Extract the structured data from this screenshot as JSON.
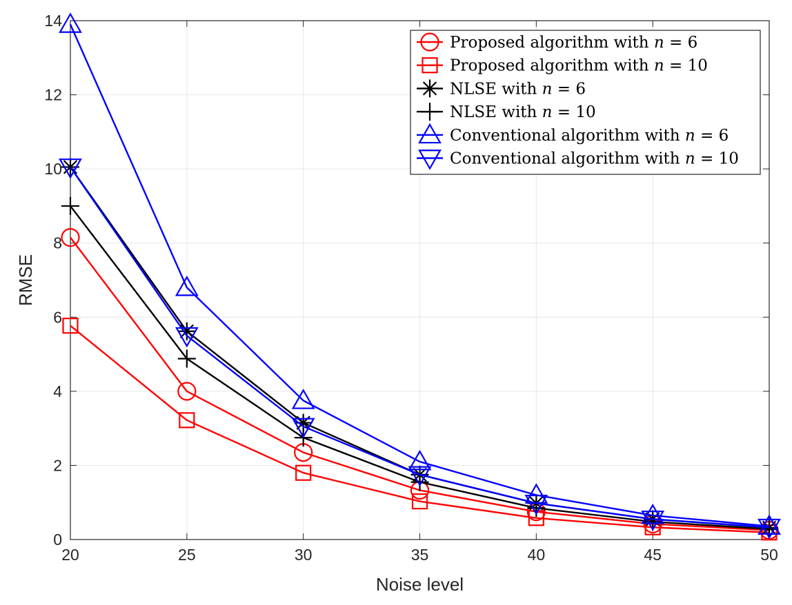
{
  "chart_data": {
    "type": "line",
    "title": "",
    "xlabel": "Noise level",
    "ylabel": "RMSE",
    "x": [
      20,
      25,
      30,
      35,
      40,
      45,
      50
    ],
    "xlim": [
      20,
      50
    ],
    "ylim": [
      0,
      14
    ],
    "xticks": [
      20,
      25,
      30,
      35,
      40,
      45,
      50
    ],
    "yticks": [
      0,
      2,
      4,
      6,
      8,
      10,
      12,
      14
    ],
    "grid": true,
    "legend_position": "top-right",
    "series": [
      {
        "name": "Proposed algorithm with n = 6",
        "legend_prefix": "Proposed algorithm with ",
        "legend_var": "n",
        "legend_eq": " = 6",
        "color": "#ff0000",
        "marker": "circle",
        "values": [
          8.15,
          4.0,
          2.35,
          1.33,
          0.75,
          0.42,
          0.25
        ]
      },
      {
        "name": "Proposed algorithm with n = 10",
        "legend_prefix": "Proposed algorithm with ",
        "legend_var": "n",
        "legend_eq": " = 10",
        "color": "#ff0000",
        "marker": "square",
        "values": [
          5.77,
          3.22,
          1.8,
          1.03,
          0.58,
          0.33,
          0.19
        ]
      },
      {
        "name": "NLSE with n = 6",
        "legend_prefix": "NLSE with ",
        "legend_var": "n",
        "legend_eq": " = 6",
        "color": "#000000",
        "marker": "asterisk",
        "values": [
          10.05,
          5.62,
          3.15,
          1.75,
          0.98,
          0.55,
          0.32
        ]
      },
      {
        "name": "NLSE with n = 10",
        "legend_prefix": "NLSE with ",
        "legend_var": "n",
        "legend_eq": " = 10",
        "color": "#000000",
        "marker": "plus",
        "values": [
          9.0,
          4.88,
          2.75,
          1.55,
          0.85,
          0.48,
          0.28
        ]
      },
      {
        "name": "Conventional algorithm with n = 6",
        "legend_prefix": "Conventional algorithm with ",
        "legend_var": "n",
        "legend_eq": " = 6",
        "color": "#0000ff",
        "marker": "triangle-up",
        "values": [
          13.9,
          6.8,
          3.75,
          2.1,
          1.2,
          0.65,
          0.36
        ]
      },
      {
        "name": "Conventional algorithm with n = 10",
        "legend_prefix": "Conventional algorithm with ",
        "legend_var": "n",
        "legend_eq": " = 10",
        "color": "#0000ff",
        "marker": "triangle-down",
        "values": [
          10.05,
          5.5,
          3.05,
          1.75,
          0.98,
          0.55,
          0.33
        ]
      }
    ]
  }
}
